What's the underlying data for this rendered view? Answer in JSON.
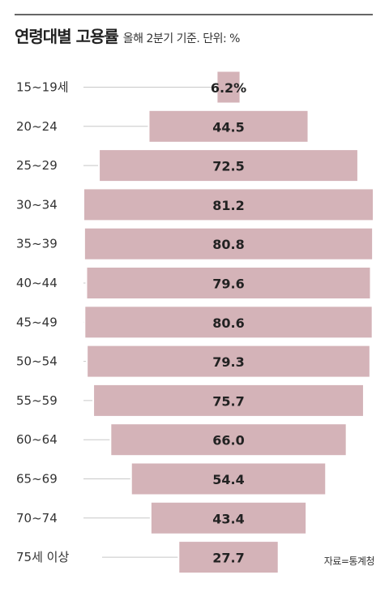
{
  "header": {
    "title": "연령대별 고용률",
    "subtitle": "올해 2분기 기준. 단위: %"
  },
  "source": "자료=통계청",
  "colors": {
    "bar": "#d4b3b8",
    "guide": "#c8c8c8",
    "rule": "#666666"
  },
  "chart_data": {
    "type": "bar",
    "orientation": "horizontal-centered",
    "title": "연령대별 고용률",
    "subtitle": "올해 2분기 기준. 단위: %",
    "categories": [
      "15~19세",
      "20~24",
      "25~29",
      "30~34",
      "35~39",
      "40~44",
      "45~49",
      "50~54",
      "55~59",
      "60~64",
      "65~69",
      "70~74",
      "75세 이상"
    ],
    "values": [
      6.2,
      44.5,
      72.5,
      81.2,
      80.8,
      79.6,
      80.6,
      79.3,
      75.7,
      66.0,
      54.4,
      43.4,
      27.7
    ],
    "value_labels": [
      "6.2%",
      "44.5",
      "72.5",
      "81.2",
      "80.8",
      "79.6",
      "80.6",
      "79.3",
      "75.7",
      "66.0",
      "54.4",
      "43.4",
      "27.7"
    ],
    "unit": "%",
    "xlim": [
      0,
      81.2
    ],
    "grid": false,
    "legend": "none"
  }
}
